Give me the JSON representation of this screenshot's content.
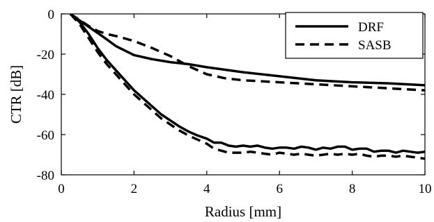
{
  "chart_data": {
    "type": "line",
    "title": "",
    "xlabel": "Radius [mm]",
    "ylabel": "CTR [dB]",
    "xlim": [
      0,
      10
    ],
    "ylim": [
      -80,
      0
    ],
    "xticks": [
      0,
      2,
      4,
      6,
      8,
      10
    ],
    "yticks": [
      0,
      -20,
      -40,
      -60,
      -80
    ],
    "xtick_labels": [
      "0",
      "2",
      "4",
      "6",
      "8",
      "10"
    ],
    "ytick_labels": [
      "0",
      "-20",
      "-40",
      "-60",
      "-80"
    ],
    "grid": false,
    "legend_position": "top-right",
    "series": [
      {
        "name": "DRF",
        "style": "solid",
        "color": "#000000",
        "curves": [
          {
            "x": [
              0.25,
              0.4,
              0.6,
              0.8,
              1.0,
              1.2,
              1.5,
              2.0,
              2.5,
              3.0,
              3.5,
              4.0,
              5.0,
              6.0,
              7.0,
              8.0,
              9.0,
              10.0
            ],
            "y": [
              0,
              -2,
              -4.5,
              -7,
              -9.5,
              -12,
              -16,
              -20.5,
              -22.5,
              -24,
              -25,
              -26.5,
              -29,
              -31,
              -33,
              -34,
              -34.5,
              -35.5
            ]
          },
          {
            "x": [
              0.25,
              0.5,
              0.75,
              1.0,
              1.25,
              1.5,
              1.75,
              2.0,
              2.25,
              2.5,
              2.75,
              3.0,
              3.25,
              3.5,
              3.75,
              4.0,
              4.2,
              4.4,
              4.6,
              4.8,
              5.0,
              5.2,
              5.4,
              5.6,
              5.8,
              6.0,
              6.2,
              6.4,
              6.6,
              6.8,
              7.0,
              7.2,
              7.4,
              7.6,
              7.8,
              8.0,
              8.2,
              8.4,
              8.6,
              8.8,
              9.0,
              9.2,
              9.4,
              9.6,
              9.8,
              10.0
            ],
            "y": [
              0,
              -4,
              -10,
              -17,
              -23,
              -28,
              -33,
              -38,
              -42,
              -46,
              -50,
              -53,
              -56,
              -58.5,
              -60.5,
              -62,
              -64,
              -64,
              -65.5,
              -66,
              -65.5,
              -66,
              -65.5,
              -66.5,
              -67,
              -66.5,
              -66.5,
              -67,
              -66,
              -66.5,
              -67.5,
              -66.5,
              -67,
              -66,
              -66,
              -67.5,
              -67,
              -67,
              -68.5,
              -68,
              -68,
              -69,
              -68,
              -68.5,
              -69,
              -68.5
            ]
          }
        ]
      },
      {
        "name": "SASB",
        "style": "dashed",
        "color": "#000000",
        "curves": [
          {
            "x": [
              0.25,
              0.5,
              0.75,
              1.0,
              1.25,
              1.5,
              2.0,
              2.5,
              3.0,
              3.5,
              4.0,
              4.5,
              5.0,
              6.0,
              7.0,
              8.0,
              9.0,
              10.0
            ],
            "y": [
              0,
              -3,
              -6,
              -8.5,
              -10,
              -11,
              -13.5,
              -17,
              -21,
              -26,
              -30,
              -32,
              -33,
              -34,
              -35,
              -36,
              -37,
              -38
            ]
          },
          {
            "x": [
              0.25,
              0.5,
              0.75,
              1.0,
              1.25,
              1.5,
              1.75,
              2.0,
              2.25,
              2.5,
              2.75,
              3.0,
              3.25,
              3.5,
              3.75,
              4.0,
              4.2,
              4.4,
              4.6,
              4.8,
              5.0,
              5.2,
              5.4,
              5.6,
              5.8,
              6.0,
              6.2,
              6.4,
              6.6,
              6.8,
              7.0,
              7.2,
              7.4,
              7.6,
              7.8,
              8.0,
              8.2,
              8.4,
              8.6,
              8.8,
              9.0,
              9.2,
              9.4,
              9.6,
              9.8,
              10.0
            ],
            "y": [
              0,
              -5,
              -12,
              -19,
              -25,
              -30,
              -35,
              -40,
              -44,
              -48,
              -52,
              -55,
              -58,
              -60.5,
              -62.5,
              -64.5,
              -67,
              -68,
              -69,
              -69,
              -69,
              -68.5,
              -69,
              -69.5,
              -70,
              -69,
              -69.5,
              -70,
              -69.5,
              -70,
              -70.5,
              -70,
              -69.5,
              -70,
              -69.5,
              -70,
              -69.5,
              -70.5,
              -71,
              -70.5,
              -70.5,
              -71,
              -70.5,
              -71,
              -71.5,
              -72
            ]
          }
        ]
      }
    ]
  }
}
